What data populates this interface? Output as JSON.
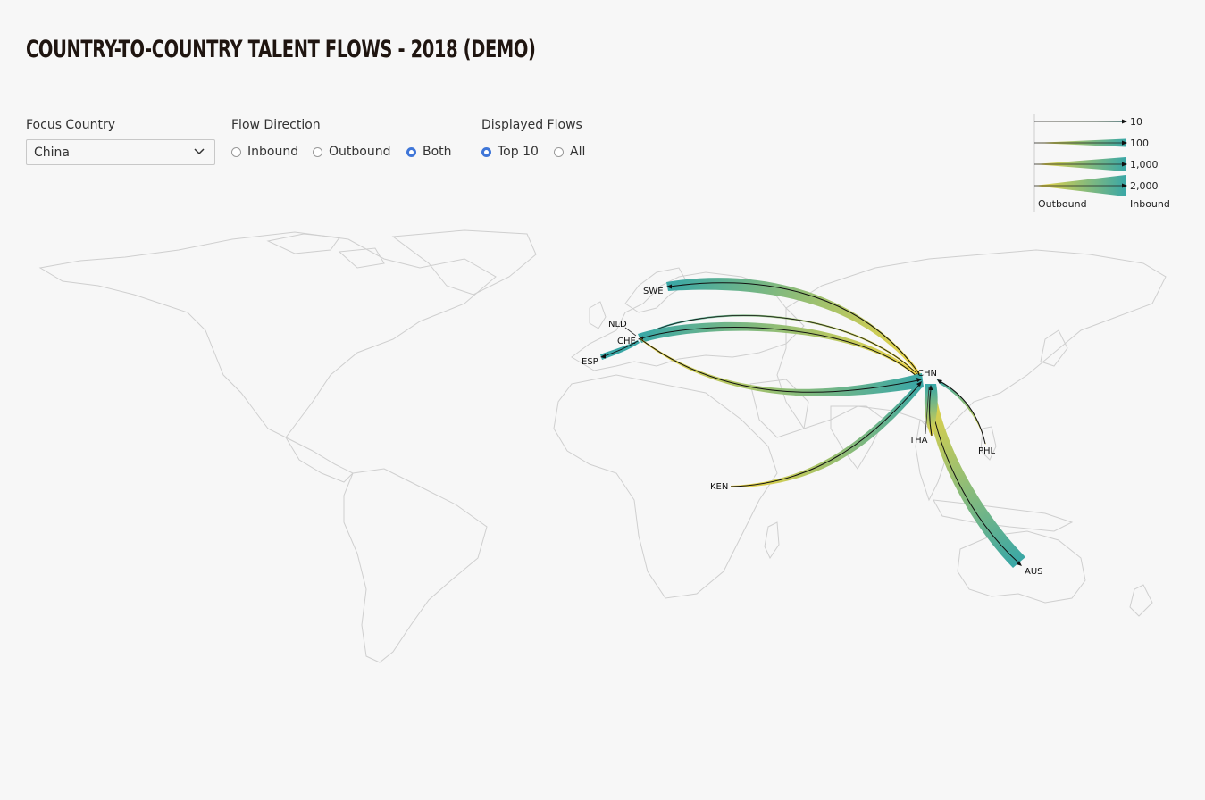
{
  "title": "COUNTRY-TO-COUNTRY TALENT FLOWS - 2018 (DEMO)",
  "controls": {
    "focus_label": "Focus Country",
    "focus_value": "China",
    "direction_label": "Flow Direction",
    "direction_options": [
      "Inbound",
      "Outbound",
      "Both"
    ],
    "direction_selected": "Both",
    "flows_label": "Displayed Flows",
    "flows_options": [
      "Top 10",
      "All"
    ],
    "flows_selected": "Top 10"
  },
  "legend": {
    "values": [
      "10",
      "100",
      "1,000",
      "2,000"
    ],
    "outbound_label": "Outbound",
    "inbound_label": "Inbound",
    "colors": {
      "outbound": "#f2d640",
      "inbound": "#3aa7a6",
      "arrow": "#111111"
    }
  },
  "map": {
    "focus": "CHN",
    "countries": [
      "SWE",
      "NLD",
      "CHE",
      "ESP",
      "CHN",
      "THA",
      "PHL",
      "KEN",
      "AUS"
    ],
    "flows": [
      {
        "from": "CHN",
        "to": "SWE",
        "direction": "outbound"
      },
      {
        "from": "CHN",
        "to": "CHE",
        "direction": "outbound"
      },
      {
        "from": "CHN",
        "to": "NLD",
        "direction": "outbound"
      },
      {
        "from": "CHE",
        "to": "CHN",
        "direction": "inbound"
      },
      {
        "from": "CHE",
        "to": "ESP",
        "direction": "other"
      },
      {
        "from": "KEN",
        "to": "CHN",
        "direction": "inbound"
      },
      {
        "from": "PHL",
        "to": "CHN",
        "direction": "inbound"
      },
      {
        "from": "THA",
        "to": "CHN",
        "direction": "inbound"
      },
      {
        "from": "CHN",
        "to": "AUS",
        "direction": "outbound"
      }
    ]
  }
}
